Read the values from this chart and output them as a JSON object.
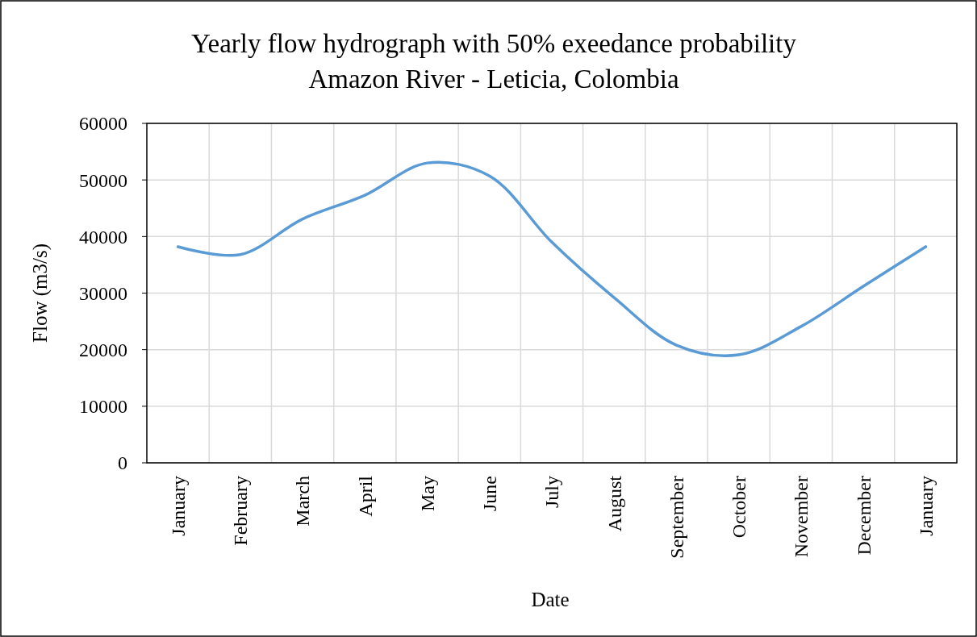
{
  "chart_data": {
    "type": "line",
    "title": "Yearly flow hydrograph with 50% exeedance probability",
    "subtitle": "Amazon River - Leticia, Colombia",
    "xlabel": "Date",
    "ylabel": "Flow (m3/s)",
    "categories": [
      "January",
      "February",
      "March",
      "April",
      "May",
      "June",
      "July",
      "August",
      "September",
      "October",
      "November",
      "December",
      "January"
    ],
    "series": [
      {
        "color": "#5b9bd5",
        "values": [
          38200,
          36800,
          43100,
          47300,
          53000,
          50700,
          39000,
          29200,
          20800,
          19100,
          24100,
          31200,
          38200
        ]
      }
    ],
    "ylim": [
      0,
      60000
    ],
    "yticks": [
      0,
      10000,
      20000,
      30000,
      40000,
      50000,
      60000
    ],
    "grid": true,
    "marker": "none",
    "line_style": "solid"
  }
}
